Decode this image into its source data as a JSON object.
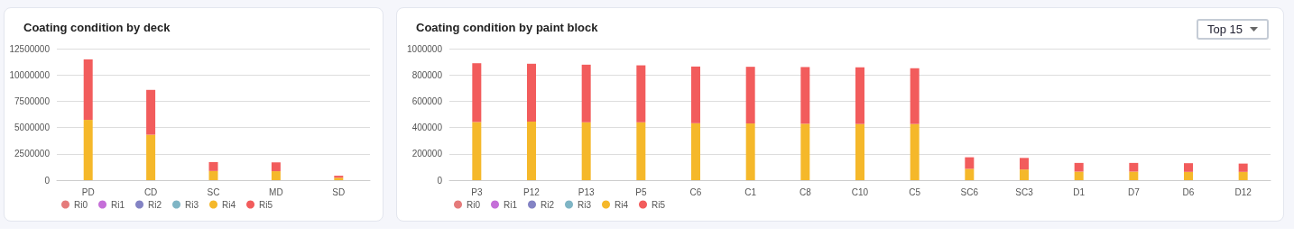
{
  "chart_data": [
    {
      "type": "bar",
      "title": "Coating condition by deck",
      "categories": [
        "PD",
        "CD",
        "SC",
        "MD",
        "SD"
      ],
      "stacked": true,
      "legend": "bottom left",
      "grid": "y",
      "ylim": [
        0,
        12500000
      ],
      "yticks": [
        0,
        2500000,
        5000000,
        7500000,
        10000000,
        12500000
      ],
      "series": [
        {
          "name": "Ri0",
          "color": "#e57b7b",
          "values": [
            0,
            0,
            0,
            0,
            0
          ]
        },
        {
          "name": "Ri1",
          "color": "#c56fd8",
          "values": [
            0,
            0,
            0,
            0,
            0
          ]
        },
        {
          "name": "Ri2",
          "color": "#8383c4",
          "values": [
            0,
            0,
            0,
            0,
            0
          ]
        },
        {
          "name": "Ri3",
          "color": "#7fb5c5",
          "values": [
            0,
            0,
            0,
            0,
            0
          ]
        },
        {
          "name": "Ri4",
          "color": "#f5b82a",
          "values": [
            5730000,
            4320000,
            870000,
            850000,
            230000
          ]
        },
        {
          "name": "Ri5",
          "color": "#f25c5c",
          "values": [
            5750000,
            4260000,
            850000,
            840000,
            190000
          ]
        }
      ]
    },
    {
      "type": "bar",
      "title": "Coating condition by paint block",
      "annotations": [
        "Top 15"
      ],
      "categories": [
        "P3",
        "P12",
        "P13",
        "P5",
        "C6",
        "C1",
        "C8",
        "C10",
        "C5",
        "SC6",
        "SC3",
        "D1",
        "D7",
        "D6",
        "D12"
      ],
      "stacked": true,
      "legend": "bottom left",
      "grid": "y",
      "ylim": [
        0,
        1000000
      ],
      "yticks": [
        0,
        200000,
        400000,
        600000,
        800000,
        1000000
      ],
      "series": [
        {
          "name": "Ri0",
          "color": "#e57b7b",
          "values": [
            0,
            0,
            0,
            0,
            0,
            0,
            0,
            0,
            0,
            0,
            0,
            0,
            0,
            0,
            0
          ]
        },
        {
          "name": "Ri1",
          "color": "#c56fd8",
          "values": [
            0,
            0,
            0,
            0,
            0,
            0,
            0,
            0,
            0,
            0,
            0,
            0,
            0,
            0,
            0
          ]
        },
        {
          "name": "Ri2",
          "color": "#8383c4",
          "values": [
            0,
            0,
            0,
            0,
            0,
            0,
            0,
            0,
            0,
            0,
            0,
            0,
            0,
            0,
            0
          ]
        },
        {
          "name": "Ri3",
          "color": "#7fb5c5",
          "values": [
            0,
            0,
            0,
            0,
            0,
            0,
            0,
            0,
            0,
            0,
            0,
            0,
            0,
            0,
            0
          ]
        },
        {
          "name": "Ri4",
          "color": "#f5b82a",
          "values": [
            442000,
            445000,
            440000,
            440000,
            433000,
            431000,
            429000,
            427000,
            427000,
            86000,
            81000,
            65000,
            65000,
            63000,
            63000
          ]
        },
        {
          "name": "Ri5",
          "color": "#f25c5c",
          "values": [
            447000,
            440000,
            438000,
            433000,
            431000,
            431000,
            431000,
            431000,
            424000,
            88000,
            88000,
            66000,
            66000,
            66000,
            63000
          ]
        }
      ]
    }
  ]
}
